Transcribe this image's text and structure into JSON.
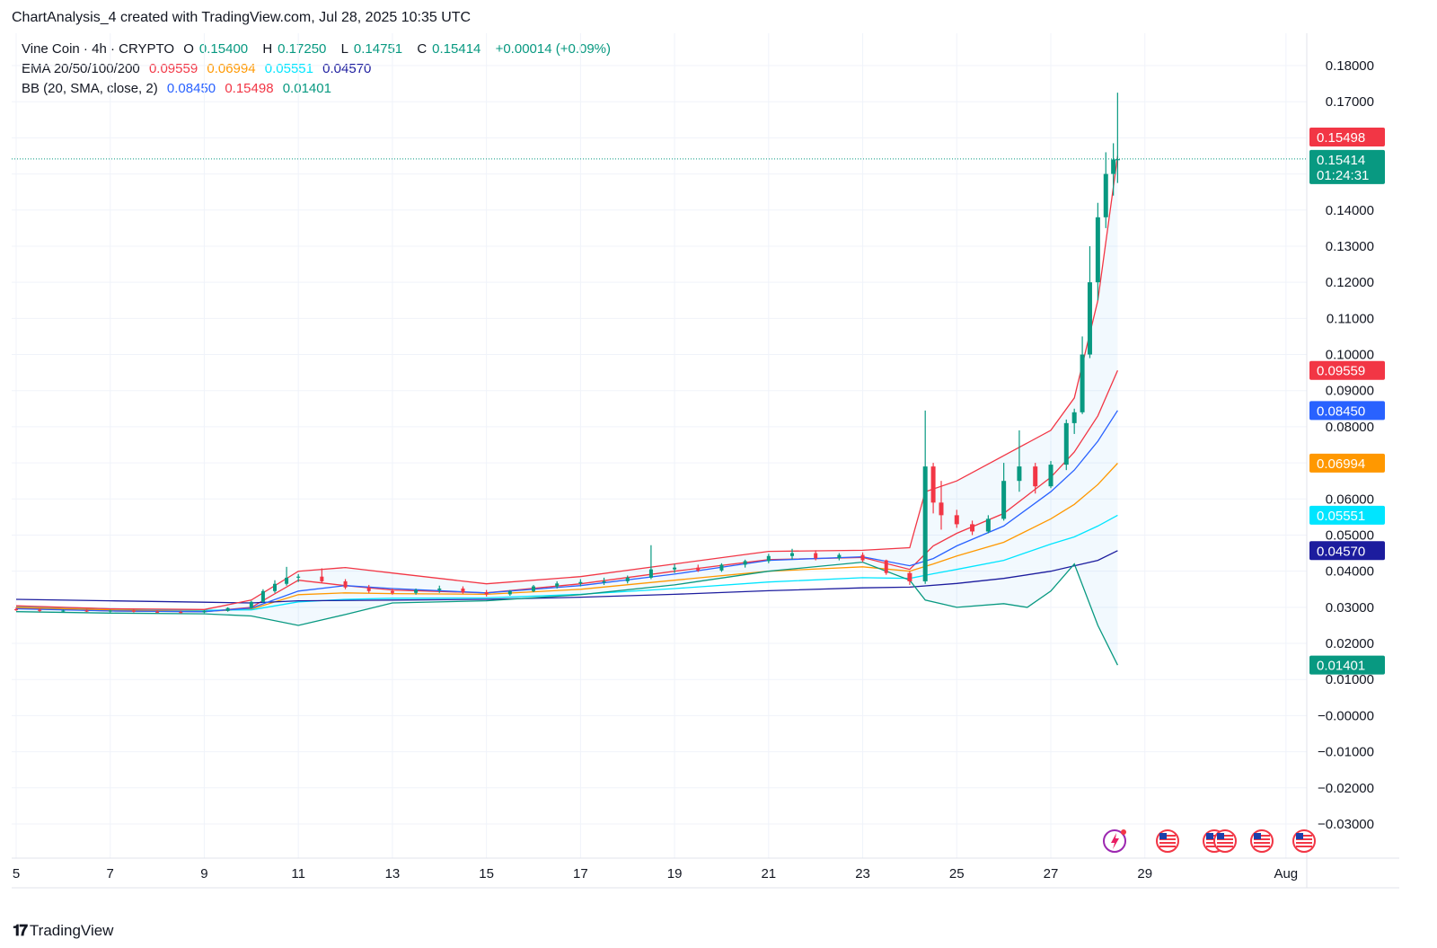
{
  "caption": "ChartAnalysis_4 created with TradingView.com, Jul 28, 2025 10:35 UTC",
  "brand": "TradingView",
  "legend": {
    "symbol": "Vine Coin · 4h · CRYPTO",
    "o_label": "O",
    "o_value": "0.15400",
    "h_label": "H",
    "h_value": "0.17250",
    "l_label": "L",
    "l_value": "0.14751",
    "c_label": "C",
    "c_value": "0.15414",
    "change": "+0.00014 (+0.09%)",
    "ema_label": "EMA 20/50/100/200",
    "ema_values": [
      "0.09559",
      "0.06994",
      "0.05551",
      "0.04570"
    ],
    "bb_label": "BB (20, SMA, close, 2)",
    "bb_values": [
      "0.08450",
      "0.15498",
      "0.01401"
    ]
  },
  "colors": {
    "up": "#089981",
    "down": "#f23645",
    "ema20": "#f23645",
    "ema50": "#ff9800",
    "ema100": "#00e5ff",
    "ema200": "#1c1c9e",
    "bb_basis": "#2962ff",
    "bb_upper": "#f23645",
    "bb_lower": "#089981",
    "bb_fill": "#2196f3"
  },
  "chart_data": {
    "type": "candlestick",
    "y_ticks": [
      "0.18000",
      "0.17000",
      "0.14000",
      "0.13000",
      "0.12000",
      "0.11000",
      "0.10000",
      "0.09000",
      "0.08000",
      "0.06000",
      "0.05000",
      "0.04000",
      "0.03000",
      "0.02000",
      "0.01000",
      "−0.00000",
      "−0.01000",
      "−0.02000",
      "−0.03000"
    ],
    "x_ticks": [
      {
        "label": "5",
        "day": 5
      },
      {
        "label": "7",
        "day": 7
      },
      {
        "label": "9",
        "day": 9
      },
      {
        "label": "11",
        "day": 11
      },
      {
        "label": "13",
        "day": 13
      },
      {
        "label": "15",
        "day": 15
      },
      {
        "label": "17",
        "day": 17
      },
      {
        "label": "19",
        "day": 19
      },
      {
        "label": "21",
        "day": 21
      },
      {
        "label": "23",
        "day": 23
      },
      {
        "label": "25",
        "day": 25
      },
      {
        "label": "27",
        "day": 27
      },
      {
        "label": "29",
        "day": 29
      },
      {
        "label": "Aug",
        "day": 32
      }
    ],
    "price_tags": [
      {
        "value": "0.15498",
        "price": 0.15498,
        "color": "#f23645"
      },
      {
        "value": "0.15414",
        "price": 0.15414,
        "color": "#089981",
        "countdown": "01:24:31"
      },
      {
        "value": "0.09559",
        "price": 0.09559,
        "color": "#f23645"
      },
      {
        "value": "0.08450",
        "price": 0.0845,
        "color": "#2962ff"
      },
      {
        "value": "0.06994",
        "price": 0.06994,
        "color": "#ff9800"
      },
      {
        "value": "0.05551",
        "price": 0.05551,
        "color": "#00e5ff"
      },
      {
        "value": "0.04570",
        "price": 0.0457,
        "color": "#1c1c9e"
      },
      {
        "value": "0.01401",
        "price": 0.01401,
        "color": "#089981"
      }
    ],
    "last_price": 0.15414,
    "y_range": [
      -0.03,
      0.18
    ],
    "candles": [
      {
        "d": 5.0,
        "o": 0.0295,
        "h": 0.03,
        "l": 0.029,
        "c": 0.0293
      },
      {
        "d": 5.5,
        "o": 0.0293,
        "h": 0.0297,
        "l": 0.0287,
        "c": 0.029
      },
      {
        "d": 6.0,
        "o": 0.029,
        "h": 0.0294,
        "l": 0.0286,
        "c": 0.0291
      },
      {
        "d": 6.5,
        "o": 0.0291,
        "h": 0.0295,
        "l": 0.0287,
        "c": 0.0289
      },
      {
        "d": 7.0,
        "o": 0.0289,
        "h": 0.0293,
        "l": 0.0286,
        "c": 0.0291
      },
      {
        "d": 7.5,
        "o": 0.0291,
        "h": 0.0294,
        "l": 0.0286,
        "c": 0.0288
      },
      {
        "d": 8.0,
        "o": 0.0288,
        "h": 0.0292,
        "l": 0.0284,
        "c": 0.0287
      },
      {
        "d": 8.5,
        "o": 0.0287,
        "h": 0.0291,
        "l": 0.0283,
        "c": 0.0286
      },
      {
        "d": 9.0,
        "o": 0.0286,
        "h": 0.0292,
        "l": 0.0284,
        "c": 0.029
      },
      {
        "d": 9.5,
        "o": 0.029,
        "h": 0.03,
        "l": 0.0288,
        "c": 0.0298
      },
      {
        "d": 10.0,
        "o": 0.0298,
        "h": 0.0318,
        "l": 0.0296,
        "c": 0.0315
      },
      {
        "d": 10.25,
        "o": 0.0315,
        "h": 0.035,
        "l": 0.0312,
        "c": 0.0345
      },
      {
        "d": 10.5,
        "o": 0.0345,
        "h": 0.0375,
        "l": 0.034,
        "c": 0.0365
      },
      {
        "d": 10.75,
        "o": 0.0365,
        "h": 0.0412,
        "l": 0.036,
        "c": 0.0382
      },
      {
        "d": 11.0,
        "o": 0.0382,
        "h": 0.0392,
        "l": 0.037,
        "c": 0.0385
      },
      {
        "d": 11.5,
        "o": 0.0385,
        "h": 0.0408,
        "l": 0.0368,
        "c": 0.0372
      },
      {
        "d": 12.0,
        "o": 0.0372,
        "h": 0.0378,
        "l": 0.035,
        "c": 0.0355
      },
      {
        "d": 12.5,
        "o": 0.0355,
        "h": 0.0362,
        "l": 0.034,
        "c": 0.0345
      },
      {
        "d": 13.0,
        "o": 0.0345,
        "h": 0.0352,
        "l": 0.0335,
        "c": 0.034
      },
      {
        "d": 13.5,
        "o": 0.034,
        "h": 0.0352,
        "l": 0.0335,
        "c": 0.0348
      },
      {
        "d": 14.0,
        "o": 0.0348,
        "h": 0.036,
        "l": 0.034,
        "c": 0.0352
      },
      {
        "d": 14.5,
        "o": 0.0352,
        "h": 0.0358,
        "l": 0.0338,
        "c": 0.0342
      },
      {
        "d": 15.0,
        "o": 0.0342,
        "h": 0.0348,
        "l": 0.033,
        "c": 0.0336
      },
      {
        "d": 15.5,
        "o": 0.0336,
        "h": 0.0348,
        "l": 0.0332,
        "c": 0.0345
      },
      {
        "d": 16.0,
        "o": 0.0345,
        "h": 0.0362,
        "l": 0.0342,
        "c": 0.0358
      },
      {
        "d": 16.5,
        "o": 0.0358,
        "h": 0.0372,
        "l": 0.0352,
        "c": 0.0366
      },
      {
        "d": 17.0,
        "o": 0.0366,
        "h": 0.0378,
        "l": 0.0358,
        "c": 0.037
      },
      {
        "d": 17.5,
        "o": 0.037,
        "h": 0.0382,
        "l": 0.0362,
        "c": 0.0372
      },
      {
        "d": 18.0,
        "o": 0.0372,
        "h": 0.0388,
        "l": 0.0366,
        "c": 0.0382
      },
      {
        "d": 18.5,
        "o": 0.0382,
        "h": 0.0472,
        "l": 0.0378,
        "c": 0.0405
      },
      {
        "d": 19.0,
        "o": 0.0405,
        "h": 0.042,
        "l": 0.0395,
        "c": 0.041
      },
      {
        "d": 19.5,
        "o": 0.041,
        "h": 0.0418,
        "l": 0.0398,
        "c": 0.0402
      },
      {
        "d": 20.0,
        "o": 0.0402,
        "h": 0.0422,
        "l": 0.0398,
        "c": 0.0418
      },
      {
        "d": 20.5,
        "o": 0.0418,
        "h": 0.0432,
        "l": 0.041,
        "c": 0.0428
      },
      {
        "d": 21.0,
        "o": 0.0428,
        "h": 0.0448,
        "l": 0.0422,
        "c": 0.0442
      },
      {
        "d": 21.5,
        "o": 0.0442,
        "h": 0.0462,
        "l": 0.0432,
        "c": 0.045
      },
      {
        "d": 22.0,
        "o": 0.045,
        "h": 0.0458,
        "l": 0.043,
        "c": 0.0436
      },
      {
        "d": 22.5,
        "o": 0.0436,
        "h": 0.045,
        "l": 0.043,
        "c": 0.0445
      },
      {
        "d": 23.0,
        "o": 0.0445,
        "h": 0.0452,
        "l": 0.0425,
        "c": 0.043
      },
      {
        "d": 23.5,
        "o": 0.043,
        "h": 0.0432,
        "l": 0.039,
        "c": 0.0395
      },
      {
        "d": 24.0,
        "o": 0.0395,
        "h": 0.04,
        "l": 0.0362,
        "c": 0.0372
      },
      {
        "d": 24.33,
        "o": 0.0372,
        "h": 0.0845,
        "l": 0.0365,
        "c": 0.069
      },
      {
        "d": 24.5,
        "o": 0.069,
        "h": 0.07,
        "l": 0.056,
        "c": 0.059
      },
      {
        "d": 24.67,
        "o": 0.059,
        "h": 0.065,
        "l": 0.0515,
        "c": 0.0555
      },
      {
        "d": 25.0,
        "o": 0.0555,
        "h": 0.057,
        "l": 0.052,
        "c": 0.053
      },
      {
        "d": 25.33,
        "o": 0.053,
        "h": 0.054,
        "l": 0.05,
        "c": 0.051
      },
      {
        "d": 25.67,
        "o": 0.051,
        "h": 0.0555,
        "l": 0.0505,
        "c": 0.0545
      },
      {
        "d": 26.0,
        "o": 0.0545,
        "h": 0.07,
        "l": 0.054,
        "c": 0.065
      },
      {
        "d": 26.33,
        "o": 0.065,
        "h": 0.079,
        "l": 0.062,
        "c": 0.069
      },
      {
        "d": 26.67,
        "o": 0.069,
        "h": 0.07,
        "l": 0.0615,
        "c": 0.0635
      },
      {
        "d": 27.0,
        "o": 0.0635,
        "h": 0.0705,
        "l": 0.063,
        "c": 0.0695
      },
      {
        "d": 27.33,
        "o": 0.0695,
        "h": 0.082,
        "l": 0.068,
        "c": 0.081
      },
      {
        "d": 27.5,
        "o": 0.081,
        "h": 0.085,
        "l": 0.078,
        "c": 0.084
      },
      {
        "d": 27.67,
        "o": 0.084,
        "h": 0.105,
        "l": 0.0835,
        "c": 0.1
      },
      {
        "d": 27.83,
        "o": 0.1,
        "h": 0.13,
        "l": 0.099,
        "c": 0.12
      },
      {
        "d": 28.0,
        "o": 0.12,
        "h": 0.142,
        "l": 0.115,
        "c": 0.138
      },
      {
        "d": 28.17,
        "o": 0.138,
        "h": 0.156,
        "l": 0.135,
        "c": 0.15
      },
      {
        "d": 28.33,
        "o": 0.15,
        "h": 0.1585,
        "l": 0.144,
        "c": 0.154
      },
      {
        "d": 28.42,
        "o": 0.154,
        "h": 0.1725,
        "l": 0.1475,
        "c": 0.1541
      }
    ],
    "series": [
      {
        "name": "EMA 20",
        "color": "#f23645",
        "points": [
          [
            5,
            0.0298
          ],
          [
            7,
            0.029
          ],
          [
            9,
            0.0288
          ],
          [
            10,
            0.03
          ],
          [
            11,
            0.0375
          ],
          [
            12,
            0.036
          ],
          [
            13,
            0.0348
          ],
          [
            15,
            0.034
          ],
          [
            17,
            0.0365
          ],
          [
            19,
            0.04
          ],
          [
            21,
            0.0432
          ],
          [
            23,
            0.0438
          ],
          [
            24,
            0.0405
          ],
          [
            24.5,
            0.047
          ],
          [
            25,
            0.0505
          ],
          [
            26,
            0.056
          ],
          [
            27,
            0.066
          ],
          [
            27.5,
            0.073
          ],
          [
            28,
            0.083
          ],
          [
            28.42,
            0.0956
          ]
        ]
      },
      {
        "name": "EMA 50",
        "color": "#ff9800",
        "points": [
          [
            5,
            0.03
          ],
          [
            7,
            0.0293
          ],
          [
            9,
            0.0289
          ],
          [
            10,
            0.0295
          ],
          [
            11,
            0.0335
          ],
          [
            12,
            0.034
          ],
          [
            13,
            0.0338
          ],
          [
            15,
            0.0336
          ],
          [
            17,
            0.035
          ],
          [
            19,
            0.0375
          ],
          [
            21,
            0.04
          ],
          [
            23,
            0.0412
          ],
          [
            24,
            0.04
          ],
          [
            24.5,
            0.042
          ],
          [
            25,
            0.0442
          ],
          [
            26,
            0.048
          ],
          [
            27,
            0.0545
          ],
          [
            27.5,
            0.0585
          ],
          [
            28,
            0.064
          ],
          [
            28.42,
            0.0699
          ]
        ]
      },
      {
        "name": "EMA 100",
        "color": "#00e5ff",
        "points": [
          [
            5,
            0.0303
          ],
          [
            7,
            0.0296
          ],
          [
            9,
            0.0292
          ],
          [
            10,
            0.0293
          ],
          [
            11,
            0.0315
          ],
          [
            12,
            0.0322
          ],
          [
            13,
            0.0325
          ],
          [
            15,
            0.0326
          ],
          [
            17,
            0.0336
          ],
          [
            19,
            0.0352
          ],
          [
            21,
            0.037
          ],
          [
            23,
            0.0382
          ],
          [
            24,
            0.038
          ],
          [
            24.5,
            0.0393
          ],
          [
            25,
            0.0405
          ],
          [
            26,
            0.043
          ],
          [
            27,
            0.0475
          ],
          [
            27.5,
            0.0495
          ],
          [
            28,
            0.0525
          ],
          [
            28.42,
            0.0555
          ]
        ]
      },
      {
        "name": "EMA 200",
        "color": "#1c1c9e",
        "points": [
          [
            5,
            0.0322
          ],
          [
            7,
            0.0318
          ],
          [
            9,
            0.0314
          ],
          [
            10,
            0.0312
          ],
          [
            11,
            0.0318
          ],
          [
            13,
            0.032
          ],
          [
            15,
            0.0322
          ],
          [
            17,
            0.0328
          ],
          [
            19,
            0.0336
          ],
          [
            21,
            0.0346
          ],
          [
            23,
            0.0354
          ],
          [
            24,
            0.0356
          ],
          [
            25,
            0.0366
          ],
          [
            26,
            0.038
          ],
          [
            27,
            0.04
          ],
          [
            28,
            0.043
          ],
          [
            28.42,
            0.0457
          ]
        ]
      },
      {
        "name": "BB basis",
        "color": "#2962ff",
        "points": [
          [
            5,
            0.0296
          ],
          [
            7,
            0.029
          ],
          [
            9,
            0.0288
          ],
          [
            10,
            0.0298
          ],
          [
            11,
            0.0345
          ],
          [
            12,
            0.036
          ],
          [
            13,
            0.0352
          ],
          [
            15,
            0.034
          ],
          [
            17,
            0.036
          ],
          [
            19,
            0.0392
          ],
          [
            21,
            0.043
          ],
          [
            23,
            0.044
          ],
          [
            24,
            0.0415
          ],
          [
            24.5,
            0.0435
          ],
          [
            25,
            0.047
          ],
          [
            26,
            0.0525
          ],
          [
            27,
            0.062
          ],
          [
            27.5,
            0.068
          ],
          [
            28,
            0.076
          ],
          [
            28.42,
            0.0845
          ]
        ]
      },
      {
        "name": "BB upper",
        "color": "#f23645",
        "points": [
          [
            5,
            0.0304
          ],
          [
            7,
            0.0296
          ],
          [
            9,
            0.0294
          ],
          [
            10,
            0.032
          ],
          [
            11,
            0.04
          ],
          [
            12,
            0.041
          ],
          [
            13,
            0.0395
          ],
          [
            15,
            0.0365
          ],
          [
            17,
            0.0385
          ],
          [
            19,
            0.042
          ],
          [
            21,
            0.0455
          ],
          [
            23,
            0.0458
          ],
          [
            24,
            0.0465
          ],
          [
            24.33,
            0.062
          ],
          [
            25,
            0.065
          ],
          [
            26,
            0.072
          ],
          [
            27,
            0.079
          ],
          [
            27.5,
            0.088
          ],
          [
            28,
            0.115
          ],
          [
            28.42,
            0.155
          ]
        ]
      },
      {
        "name": "BB lower",
        "color": "#089981",
        "points": [
          [
            5,
            0.0288
          ],
          [
            7,
            0.0284
          ],
          [
            9,
            0.0282
          ],
          [
            10,
            0.0276
          ],
          [
            11,
            0.025
          ],
          [
            12,
            0.028
          ],
          [
            13,
            0.0312
          ],
          [
            15,
            0.0318
          ],
          [
            17,
            0.0335
          ],
          [
            19,
            0.0362
          ],
          [
            21,
            0.04
          ],
          [
            23,
            0.0425
          ],
          [
            24,
            0.0375
          ],
          [
            24.33,
            0.032
          ],
          [
            25,
            0.03
          ],
          [
            26,
            0.031
          ],
          [
            26.5,
            0.03
          ],
          [
            27,
            0.0345
          ],
          [
            27.5,
            0.042
          ],
          [
            28,
            0.025
          ],
          [
            28.42,
            0.014
          ]
        ]
      }
    ]
  }
}
